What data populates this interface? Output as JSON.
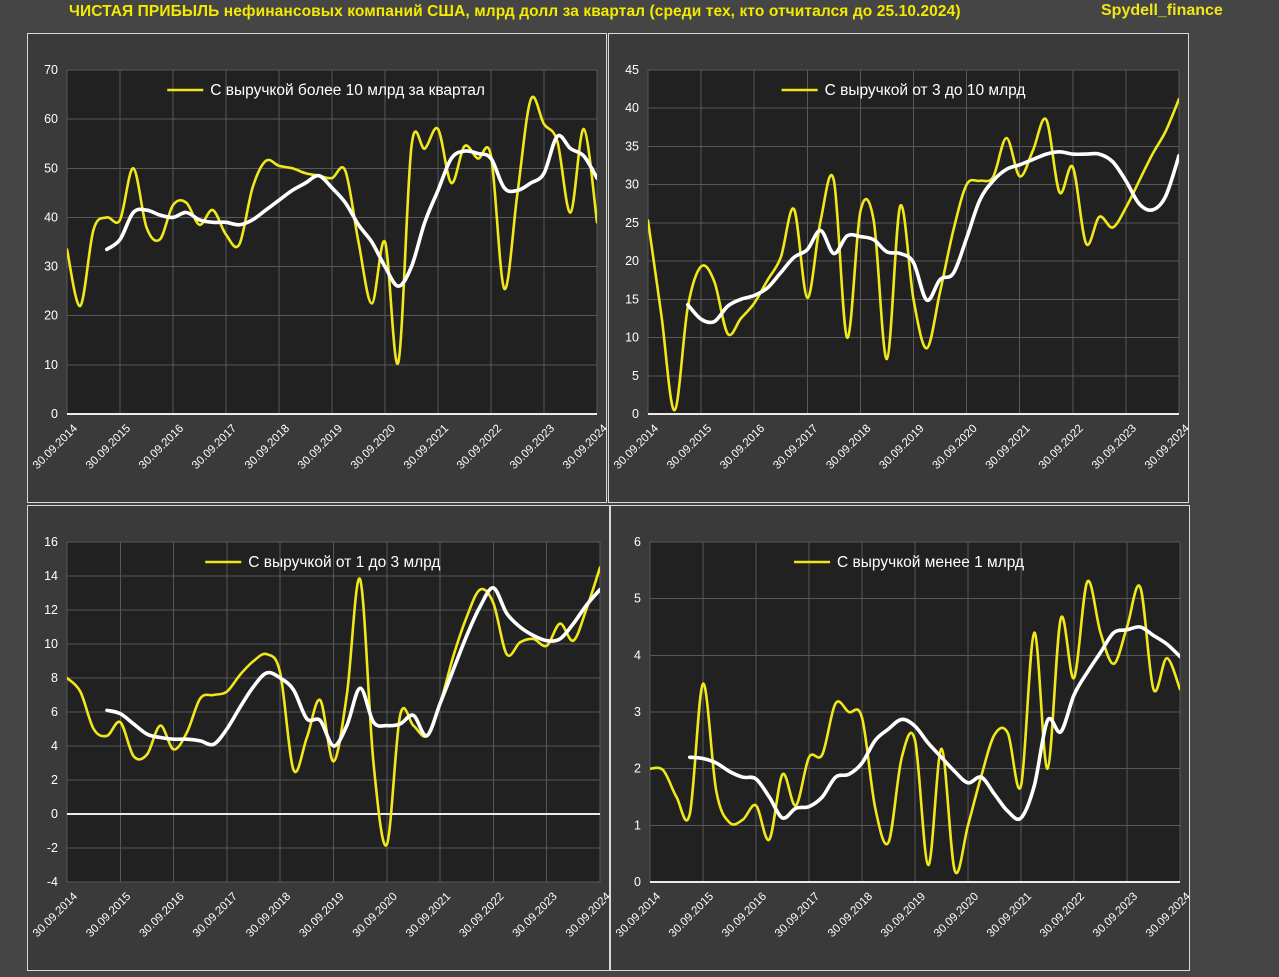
{
  "header": {
    "title": "ЧИСТАЯ ПРИБЫЛЬ нефинансовых компаний США, млрд долл за квартал (среди тех, кто отчитался до 25.10.2024)",
    "brand": "Spydell_finance"
  },
  "colors": {
    "background": "#464646",
    "panel_background": "#3a3a3a",
    "plot_background": "#212121",
    "gridline": "#585858",
    "axis_zero_line": "#ebebeb",
    "tick_text": "#ffffff",
    "legend_text": "#ffffff",
    "title_yellow": "#f3ea00",
    "series_yellow": "#f0e81a",
    "series_white": "#ffffff",
    "panel_border": "#d9d9d9"
  },
  "x_labels": [
    "30.09.2014",
    "30.09.2015",
    "30.09.2016",
    "30.09.2017",
    "30.09.2018",
    "30.09.2019",
    "30.09.2020",
    "30.09.2021",
    "30.09.2022",
    "30.09.2023",
    "30.09.2024"
  ],
  "chart_data": [
    {
      "type": "line",
      "title": "С выручкой более 10 млрд за квартал",
      "ylim": [
        0,
        70
      ],
      "ytick": 10,
      "grid": true,
      "legend_position": "top-center",
      "x_tick_labels": [
        "30.09.2014",
        "30.09.2015",
        "30.09.2016",
        "30.09.2017",
        "30.09.2018",
        "30.09.2019",
        "30.09.2020",
        "30.09.2021",
        "30.09.2022",
        "30.09.2023",
        "30.09.2024"
      ],
      "series": [
        {
          "name": "quarterly",
          "color": "#f0e81a",
          "in_legend": true,
          "values": [
            33.5,
            22,
            37.5,
            40,
            39.5,
            50,
            38,
            35.5,
            42.5,
            43,
            38.5,
            41.5,
            36.5,
            34.5,
            46,
            51.5,
            50.5,
            50,
            49,
            48.5,
            48,
            49.5,
            35,
            22.5,
            35,
            10.5,
            54.5,
            54,
            58,
            47,
            54.5,
            52,
            52.5,
            25.5,
            45,
            64,
            59,
            55.5,
            41,
            58,
            39
          ]
        },
        {
          "name": "smoothed",
          "color": "#ffffff",
          "in_legend": false,
          "values": [
            null,
            null,
            null,
            33.5,
            35.5,
            41,
            41.5,
            40.5,
            40,
            41,
            39.5,
            39,
            39,
            38.5,
            39.5,
            41.5,
            43.5,
            45.5,
            47,
            48.5,
            46,
            43,
            38.5,
            35,
            30,
            26,
            30,
            39,
            45.5,
            52,
            53.5,
            53,
            52,
            46,
            45.5,
            47,
            49,
            56.5,
            54,
            52.5,
            48
          ]
        }
      ]
    },
    {
      "type": "line",
      "title": "С выручкой от 3 до 10 млрд",
      "ylim": [
        0,
        45
      ],
      "ytick": 5,
      "grid": true,
      "legend_position": "top-center",
      "x_tick_labels": [
        "30.09.2014",
        "30.09.2015",
        "30.09.2016",
        "30.09.2017",
        "30.09.2018",
        "30.09.2019",
        "30.09.2020",
        "30.09.2021",
        "30.09.2022",
        "30.09.2023",
        "30.09.2024"
      ],
      "series": [
        {
          "name": "quarterly",
          "color": "#f0e81a",
          "in_legend": true,
          "values": [
            25.3,
            13,
            0.5,
            14,
            19.3,
            17.3,
            10.5,
            12.5,
            14.5,
            17.5,
            20.5,
            26.8,
            15.2,
            25.3,
            30.6,
            10,
            26.5,
            25.3,
            7.2,
            27.2,
            15,
            8.6,
            16,
            24,
            30,
            30.5,
            31,
            36.1,
            31.1,
            34.5,
            38.5,
            29,
            32.3,
            22.3,
            25.8,
            24.4,
            27,
            30.5,
            34,
            37,
            41.2
          ]
        },
        {
          "name": "smoothed",
          "color": "#ffffff",
          "in_legend": false,
          "values": [
            null,
            null,
            null,
            14.3,
            12.4,
            12.1,
            14.1,
            15,
            15.5,
            16.5,
            18.5,
            20.5,
            21.5,
            24,
            21,
            23.3,
            23.2,
            22.8,
            21.2,
            21,
            19.8,
            14.9,
            17.6,
            18.4,
            23,
            28,
            30.5,
            32,
            32.6,
            33.3,
            34,
            34.3,
            34,
            34,
            34,
            33,
            30.5,
            27.5,
            26.7,
            28.5,
            33.8
          ]
        }
      ]
    },
    {
      "type": "line",
      "title": "С выручкой от 1 до 3 млрд",
      "ylim": [
        -4,
        16
      ],
      "ytick": 2,
      "grid": true,
      "legend_position": "top-center",
      "x_tick_labels": [
        "30.09.2014",
        "30.09.2015",
        "30.09.2016",
        "30.09.2017",
        "30.09.2018",
        "30.09.2019",
        "30.09.2020",
        "30.09.2021",
        "30.09.2022",
        "30.09.2023",
        "30.09.2024"
      ],
      "series": [
        {
          "name": "quarterly",
          "color": "#f0e81a",
          "in_legend": true,
          "values": [
            8.0,
            7.2,
            5.0,
            4.6,
            5.4,
            3.4,
            3.5,
            5.2,
            3.8,
            4.8,
            6.8,
            7.0,
            7.2,
            8.2,
            9.0,
            9.4,
            8.3,
            2.6,
            4.5,
            6.7,
            3.1,
            7.0,
            13.8,
            3.0,
            -1.8,
            5.8,
            5.2,
            4.6,
            6.5,
            9.3,
            11.6,
            13.2,
            12.4,
            9.4,
            10.1,
            10.3,
            9.9,
            11.2,
            10.2,
            12.1,
            14.5
          ]
        },
        {
          "name": "smoothed",
          "color": "#ffffff",
          "in_legend": false,
          "values": [
            null,
            null,
            null,
            6.1,
            5.9,
            5.3,
            4.7,
            4.5,
            4.4,
            4.4,
            4.3,
            4.1,
            5.0,
            6.3,
            7.5,
            8.3,
            8.0,
            7.3,
            5.6,
            5.5,
            4.0,
            5.2,
            7.4,
            5.4,
            5.2,
            5.3,
            5.8,
            4.6,
            6.5,
            8.5,
            10.5,
            12.2,
            13.3,
            11.8,
            11.0,
            10.5,
            10.2,
            10.3,
            11.2,
            12.3,
            13.2
          ]
        }
      ]
    },
    {
      "type": "line",
      "title": "С выручкой менее 1 млрд",
      "ylim": [
        0,
        6
      ],
      "ytick": 1,
      "grid": true,
      "legend_position": "top-center",
      "x_tick_labels": [
        "30.09.2014",
        "30.09.2015",
        "30.09.2016",
        "30.09.2017",
        "30.09.2018",
        "30.09.2019",
        "30.09.2020",
        "30.09.2021",
        "30.09.2022",
        "30.09.2023",
        "30.09.2024"
      ],
      "series": [
        {
          "name": "quarterly",
          "color": "#f0e81a",
          "in_legend": true,
          "values": [
            2.0,
            1.97,
            1.5,
            1.2,
            3.5,
            1.6,
            1.05,
            1.1,
            1.35,
            0.75,
            1.9,
            1.35,
            2.2,
            2.25,
            3.15,
            3.0,
            2.9,
            1.3,
            0.7,
            2.2,
            2.5,
            0.3,
            2.35,
            0.2,
            1.0,
            1.87,
            2.6,
            2.63,
            1.7,
            4.4,
            2.0,
            4.65,
            3.6,
            5.3,
            4.4,
            3.85,
            4.5,
            5.2,
            3.4,
            3.95,
            3.4
          ]
        },
        {
          "name": "smoothed",
          "color": "#ffffff",
          "in_legend": false,
          "values": [
            null,
            null,
            null,
            2.2,
            2.18,
            2.1,
            1.95,
            1.85,
            1.82,
            1.5,
            1.13,
            1.3,
            1.33,
            1.5,
            1.85,
            1.9,
            2.1,
            2.5,
            2.7,
            2.87,
            2.75,
            2.45,
            2.2,
            1.95,
            1.75,
            1.85,
            1.55,
            1.25,
            1.13,
            1.7,
            2.85,
            2.65,
            3.3,
            3.7,
            4.05,
            4.4,
            4.45,
            4.5,
            4.35,
            4.2,
            3.98
          ]
        }
      ]
    }
  ]
}
